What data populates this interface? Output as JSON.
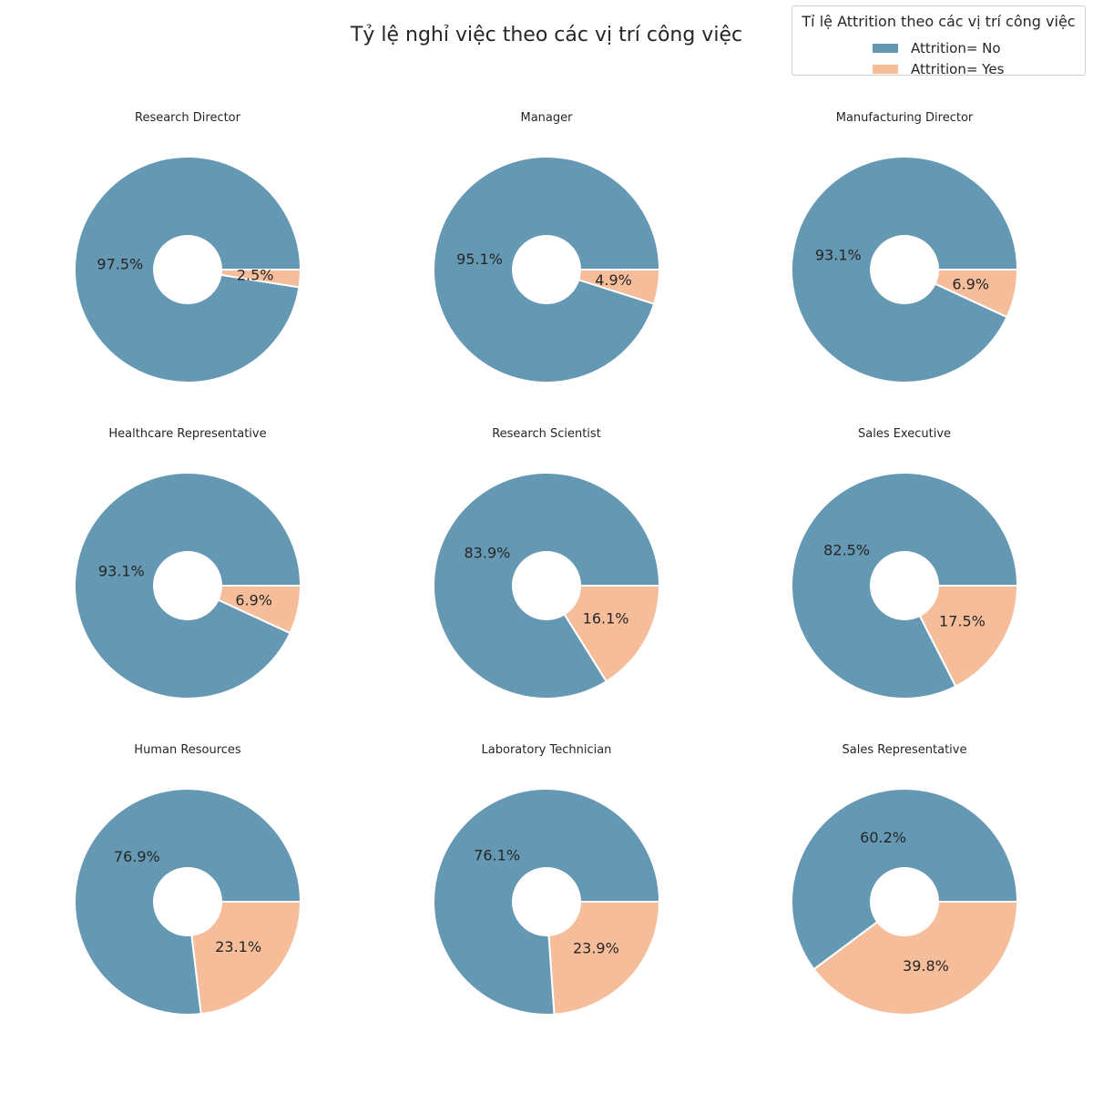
{
  "chart_data": {
    "type": "pie",
    "style": "donut",
    "title": "Tỷ lệ nghỉ việc theo các vị trí công việc",
    "legend": {
      "title": "Tỉ lệ Attrition theo các vị trí công việc",
      "placement": "top-right",
      "entries": [
        "Attrition= No",
        "Attrition= Yes"
      ]
    },
    "colors": {
      "no": "#6498b3",
      "yes": "#f6bd9b"
    },
    "charts": [
      {
        "title": "Research Director",
        "slices": [
          {
            "label": "Attrition= No",
            "value": 97.5,
            "text": "97.5%"
          },
          {
            "label": "Attrition= Yes",
            "value": 2.5,
            "text": "2.5%"
          }
        ]
      },
      {
        "title": "Manager",
        "slices": [
          {
            "label": "Attrition= No",
            "value": 95.1,
            "text": "95.1%"
          },
          {
            "label": "Attrition= Yes",
            "value": 4.9,
            "text": "4.9%"
          }
        ]
      },
      {
        "title": "Manufacturing Director",
        "slices": [
          {
            "label": "Attrition= No",
            "value": 93.1,
            "text": "93.1%"
          },
          {
            "label": "Attrition= Yes",
            "value": 6.9,
            "text": "6.9%"
          }
        ]
      },
      {
        "title": "Healthcare Representative",
        "slices": [
          {
            "label": "Attrition= No",
            "value": 93.1,
            "text": "93.1%"
          },
          {
            "label": "Attrition= Yes",
            "value": 6.9,
            "text": "6.9%"
          }
        ]
      },
      {
        "title": "Research Scientist",
        "slices": [
          {
            "label": "Attrition= No",
            "value": 83.9,
            "text": "83.9%"
          },
          {
            "label": "Attrition= Yes",
            "value": 16.1,
            "text": "16.1%"
          }
        ]
      },
      {
        "title": "Sales Executive",
        "slices": [
          {
            "label": "Attrition= No",
            "value": 82.5,
            "text": "82.5%"
          },
          {
            "label": "Attrition= Yes",
            "value": 17.5,
            "text": "17.5%"
          }
        ]
      },
      {
        "title": "Human Resources",
        "slices": [
          {
            "label": "Attrition= No",
            "value": 76.9,
            "text": "76.9%"
          },
          {
            "label": "Attrition= Yes",
            "value": 23.1,
            "text": "23.1%"
          }
        ]
      },
      {
        "title": "Laboratory Technician",
        "slices": [
          {
            "label": "Attrition= No",
            "value": 76.1,
            "text": "76.1%"
          },
          {
            "label": "Attrition= Yes",
            "value": 23.9,
            "text": "23.9%"
          }
        ]
      },
      {
        "title": "Sales Representative",
        "slices": [
          {
            "label": "Attrition= No",
            "value": 60.2,
            "text": "60.2%"
          },
          {
            "label": "Attrition= Yes",
            "value": 39.8,
            "text": "39.8%"
          }
        ]
      }
    ]
  }
}
